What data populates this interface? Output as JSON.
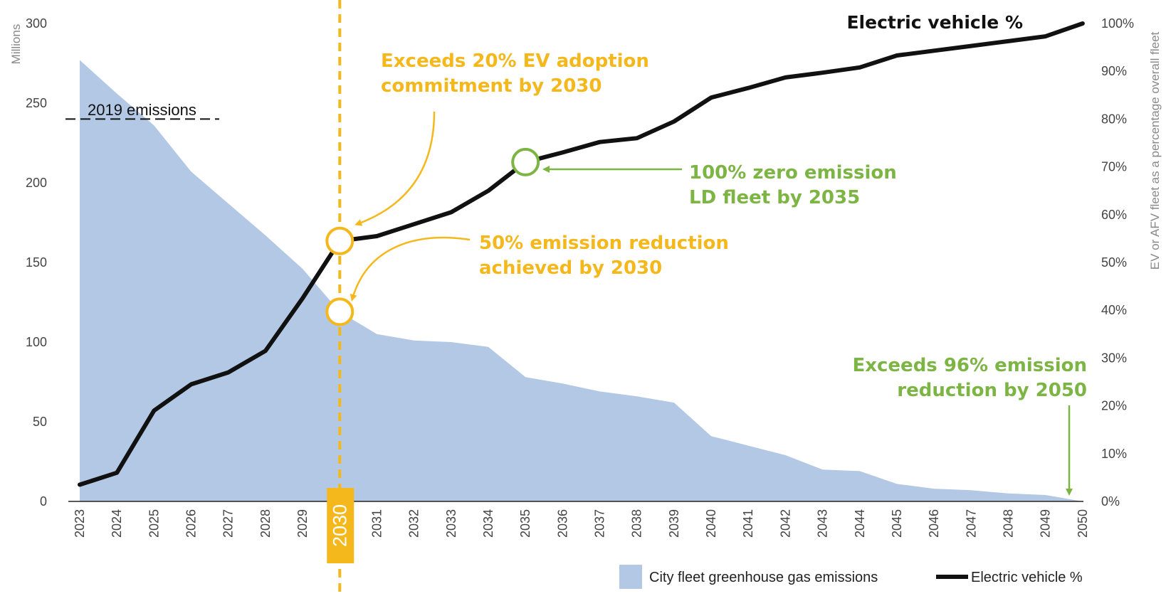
{
  "colors": {
    "area": "#b3c8e4",
    "line": "#111111",
    "yellow": "#f5b81c",
    "green": "#7db545",
    "axis": "#222222",
    "tick": "#444444"
  },
  "chart_data": {
    "type": "area+line",
    "years": [
      "2023",
      "2024",
      "2025",
      "2026",
      "2027",
      "2028",
      "2029",
      "2030",
      "2031",
      "2032",
      "2033",
      "2034",
      "2035",
      "2036",
      "2037",
      "2038",
      "2039",
      "2040",
      "2041",
      "2042",
      "2043",
      "2044",
      "2045",
      "2046",
      "2047",
      "2048",
      "2049",
      "2050"
    ],
    "series": [
      {
        "name": "City fleet greenhouse gas emissions",
        "axis": "left",
        "kind": "area",
        "values": [
          277,
          256,
          236,
          207,
          187,
          167,
          146,
          119,
          105,
          101,
          100,
          97,
          78,
          74,
          69,
          66,
          62,
          41,
          35,
          29,
          20,
          19,
          11,
          8,
          7,
          5,
          4,
          0
        ]
      },
      {
        "name": "Electric vehicle %",
        "axis": "right",
        "kind": "line",
        "values": [
          3.5,
          6,
          19,
          24.5,
          27,
          31.5,
          42.5,
          54.5,
          55.5,
          58,
          60.5,
          65,
          71,
          73,
          75.2,
          76,
          79.5,
          84.5,
          86.5,
          88.7,
          89.7,
          90.8,
          93.3,
          94.3,
          95.3,
          96.3,
          97.3,
          100
        ]
      }
    ],
    "left_axis": {
      "label": "Millions",
      "min": 0,
      "max": 300,
      "ticks": [
        "0",
        "50",
        "100",
        "150",
        "200",
        "250",
        "300"
      ]
    },
    "right_axis": {
      "label": "EV or AFV fleet as a percentage overall fleet",
      "min": 0,
      "max": 100,
      "ticks": [
        "0%",
        "10%",
        "20%",
        "30%",
        "40%",
        "50%",
        "60%",
        "70%",
        "80%",
        "90%",
        "100%"
      ]
    },
    "reference_line": {
      "label": "2019 emissions",
      "value": 240
    },
    "highlight_year": "2030",
    "annotations": [
      {
        "lines": [
          "Exceeds 20% EV adoption",
          "commitment by 2030"
        ],
        "color": "yellow"
      },
      {
        "lines": [
          "50% emission reduction",
          "achieved by 2030"
        ],
        "color": "yellow"
      },
      {
        "lines": [
          "100% zero emission",
          "LD fleet by 2035"
        ],
        "color": "green"
      },
      {
        "lines": [
          "Exceeds 96% emission",
          "reduction by 2050"
        ],
        "color": "green"
      }
    ],
    "line_title": "Electric vehicle %",
    "legend": [
      {
        "label": "City fleet greenhouse gas emissions",
        "kind": "area"
      },
      {
        "label": "Electric vehicle %",
        "kind": "line"
      }
    ]
  }
}
